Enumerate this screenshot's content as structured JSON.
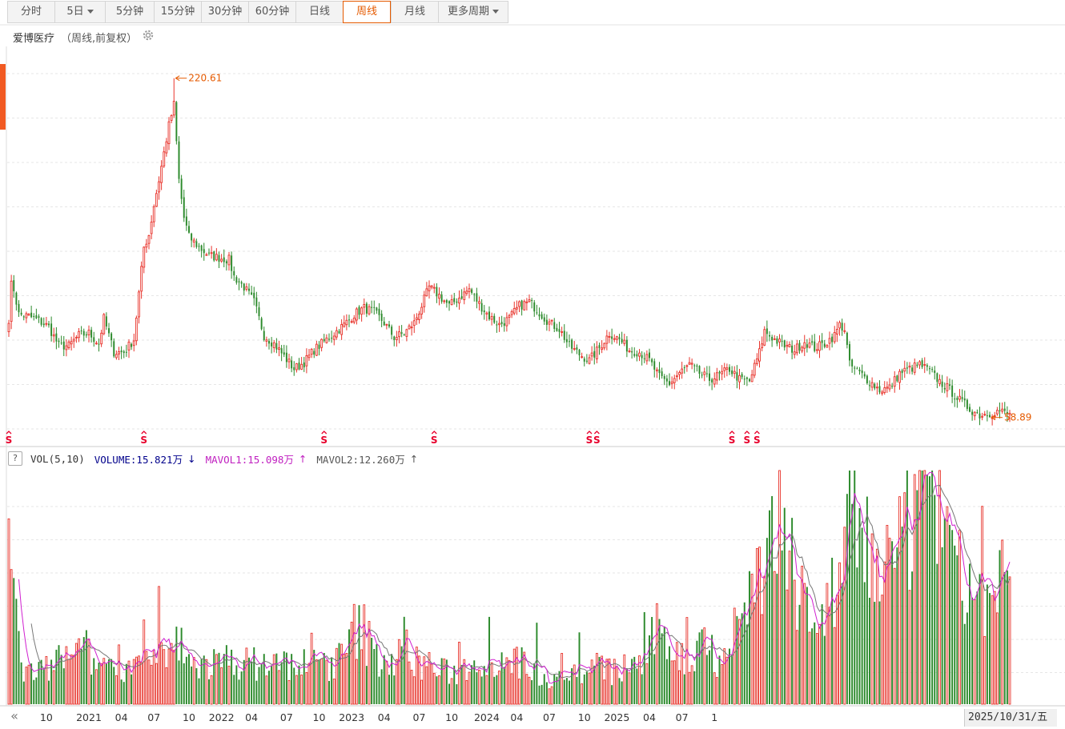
{
  "tabs": [
    {
      "label": "分时",
      "dropdown": false,
      "active": false,
      "w": 58
    },
    {
      "label": "5日",
      "dropdown": true,
      "active": false,
      "w": 62
    },
    {
      "label": "5分钟",
      "dropdown": false,
      "active": false,
      "w": 60
    },
    {
      "label": "15分钟",
      "dropdown": false,
      "active": false,
      "w": 58
    },
    {
      "label": "30分钟",
      "dropdown": false,
      "active": false,
      "w": 58
    },
    {
      "label": "60分钟",
      "dropdown": false,
      "active": false,
      "w": 58
    },
    {
      "label": "日线",
      "dropdown": false,
      "active": false,
      "w": 58
    },
    {
      "label": "周线",
      "dropdown": false,
      "active": true,
      "w": 58
    },
    {
      "label": "月线",
      "dropdown": false,
      "active": false,
      "w": 58
    },
    {
      "label": "更多周期",
      "dropdown": true,
      "active": false,
      "w": 86
    }
  ],
  "stock": {
    "name": "爱博医疗",
    "period": "（周线,前复权）",
    "settings_icon": "gear-icon"
  },
  "volume_legend": {
    "help_label": "?",
    "indicator": "VOL(5,10)",
    "volume_text": "VOLUME:15.821万",
    "volume_arrow": "↓",
    "mavol1_text": "MAVOL1:15.098万",
    "mavol1_arrow": "↑",
    "mavol2_text": "MAVOL2:12.260万",
    "mavol2_arrow": "↑"
  },
  "date_display": "2025/10/31/五",
  "nav_icon": "double-left-arrow-icon",
  "colors": {
    "up": "#e8342c",
    "down": "#2b8a2b",
    "mavol1": "#d020d0",
    "mavol2": "#777777",
    "accent": "#e55a00",
    "marker": "#e8002c"
  },
  "chart_data": [
    {
      "type": "candlestick",
      "title": "爱博医疗",
      "period": "weekly",
      "ylim": [
        50,
        235
      ],
      "max_label": "220.61",
      "min_label": "58.89",
      "series": [
        {
          "name": "weekly close",
          "anchors": [
            [
              0,
              106
            ],
            [
              1,
              122
            ],
            [
              2,
              120
            ],
            [
              4,
              108
            ],
            [
              8,
              107
            ],
            [
              12,
              105
            ],
            [
              16,
              102
            ],
            [
              20,
              93
            ],
            [
              24,
              93
            ],
            [
              28,
              98
            ],
            [
              32,
              99
            ],
            [
              36,
              94
            ],
            [
              38,
              106
            ],
            [
              42,
              90
            ],
            [
              46,
              90
            ],
            [
              50,
              96
            ],
            [
              54,
              140
            ],
            [
              56,
              146
            ],
            [
              58,
              160
            ],
            [
              60,
              172
            ],
            [
              62,
              185
            ],
            [
              64,
              198
            ],
            [
              66,
              208
            ],
            [
              68,
              172
            ],
            [
              70,
              154
            ],
            [
              72,
              145
            ],
            [
              76,
              140
            ],
            [
              80,
              136
            ],
            [
              84,
              135
            ],
            [
              88,
              134
            ],
            [
              90,
              126
            ],
            [
              94,
              121
            ],
            [
              98,
              114
            ],
            [
              102,
              98
            ],
            [
              106,
              94
            ],
            [
              110,
              88
            ],
            [
              114,
              82
            ],
            [
              118,
              85
            ],
            [
              122,
              91
            ],
            [
              126,
              95
            ],
            [
              130,
              99
            ],
            [
              134,
              103
            ],
            [
              138,
              108
            ],
            [
              142,
              111
            ],
            [
              146,
              109
            ],
            [
              150,
              104
            ],
            [
              154,
              97
            ],
            [
              158,
              99
            ],
            [
              162,
              104
            ],
            [
              166,
              115
            ],
            [
              168,
              121
            ],
            [
              172,
              117
            ],
            [
              176,
              112
            ],
            [
              180,
              116
            ],
            [
              184,
              120
            ],
            [
              188,
              113
            ],
            [
              192,
              107
            ],
            [
              196,
              103
            ],
            [
              200,
              106
            ],
            [
              204,
              112
            ],
            [
              208,
              114
            ],
            [
              212,
              109
            ],
            [
              216,
              104
            ],
            [
              220,
              101
            ],
            [
              224,
              93
            ],
            [
              228,
              89
            ],
            [
              232,
              86
            ],
            [
              236,
              92
            ],
            [
              240,
              99
            ],
            [
              244,
              96
            ],
            [
              248,
              91
            ],
            [
              252,
              90
            ],
            [
              256,
              86
            ],
            [
              260,
              78
            ],
            [
              264,
              75
            ],
            [
              268,
              80
            ],
            [
              272,
              84
            ],
            [
              276,
              80
            ],
            [
              280,
              77
            ],
            [
              284,
              79
            ],
            [
              288,
              82
            ],
            [
              292,
              77
            ],
            [
              296,
              76
            ],
            [
              300,
              90
            ],
            [
              302,
              100
            ],
            [
              306,
              96
            ],
            [
              310,
              93
            ],
            [
              314,
              91
            ],
            [
              318,
              95
            ],
            [
              322,
              92
            ],
            [
              326,
              94
            ],
            [
              330,
              98
            ],
            [
              332,
              103
            ],
            [
              334,
              101
            ],
            [
              336,
              84
            ],
            [
              340,
              80
            ],
            [
              344,
              76
            ],
            [
              348,
              72
            ],
            [
              352,
              73
            ],
            [
              356,
              80
            ],
            [
              360,
              82
            ],
            [
              364,
              84
            ],
            [
              368,
              81
            ],
            [
              372,
              76
            ],
            [
              376,
              72
            ],
            [
              380,
              67
            ],
            [
              384,
              63
            ],
            [
              388,
              60
            ],
            [
              392,
              61
            ],
            [
              396,
              62
            ],
            [
              400,
              60
            ]
          ]
        }
      ],
      "volume": {
        "unit": "万",
        "anchors": [
          [
            0,
            28
          ],
          [
            2,
            12
          ],
          [
            6,
            4
          ],
          [
            10,
            4
          ],
          [
            14,
            4
          ],
          [
            18,
            5
          ],
          [
            22,
            6
          ],
          [
            26,
            5
          ],
          [
            30,
            7
          ],
          [
            34,
            5
          ],
          [
            38,
            5
          ],
          [
            42,
            6
          ],
          [
            46,
            5
          ],
          [
            50,
            5
          ],
          [
            54,
            5
          ],
          [
            58,
            5
          ],
          [
            60,
            6
          ],
          [
            62,
            6
          ],
          [
            64,
            5
          ],
          [
            66,
            7
          ],
          [
            68,
            8
          ],
          [
            70,
            6
          ],
          [
            72,
            5
          ],
          [
            74,
            5
          ],
          [
            78,
            5
          ],
          [
            82,
            5
          ],
          [
            86,
            5
          ],
          [
            90,
            6
          ],
          [
            94,
            5
          ],
          [
            98,
            5
          ],
          [
            102,
            5
          ],
          [
            106,
            5
          ],
          [
            110,
            5
          ],
          [
            114,
            5
          ],
          [
            118,
            5
          ],
          [
            122,
            5
          ],
          [
            126,
            5
          ],
          [
            130,
            5
          ],
          [
            134,
            6
          ],
          [
            138,
            9
          ],
          [
            142,
            9
          ],
          [
            146,
            6
          ],
          [
            150,
            6
          ],
          [
            154,
            5
          ],
          [
            156,
            6
          ],
          [
            158,
            8
          ],
          [
            160,
            6
          ],
          [
            164,
            5
          ],
          [
            168,
            5
          ],
          [
            172,
            4
          ],
          [
            176,
            4
          ],
          [
            180,
            4
          ],
          [
            184,
            5
          ],
          [
            188,
            6
          ],
          [
            192,
            5
          ],
          [
            196,
            6
          ],
          [
            200,
            6
          ],
          [
            204,
            5
          ],
          [
            208,
            5
          ],
          [
            212,
            4
          ],
          [
            216,
            3
          ],
          [
            220,
            5
          ],
          [
            224,
            4
          ],
          [
            228,
            4
          ],
          [
            232,
            4
          ],
          [
            236,
            5
          ],
          [
            240,
            4
          ],
          [
            244,
            4
          ],
          [
            248,
            5
          ],
          [
            252,
            5
          ],
          [
            256,
            6
          ],
          [
            258,
            9
          ],
          [
            262,
            9
          ],
          [
            266,
            7
          ],
          [
            270,
            5
          ],
          [
            274,
            6
          ],
          [
            278,
            10
          ],
          [
            282,
            6
          ],
          [
            286,
            6
          ],
          [
            290,
            9
          ],
          [
            294,
            12
          ],
          [
            298,
            14
          ],
          [
            300,
            17
          ],
          [
            304,
            20
          ],
          [
            308,
            21
          ],
          [
            312,
            16
          ],
          [
            316,
            16
          ],
          [
            320,
            13
          ],
          [
            324,
            9
          ],
          [
            328,
            12
          ],
          [
            332,
            14
          ],
          [
            334,
            20
          ],
          [
            338,
            24
          ],
          [
            342,
            20
          ],
          [
            346,
            17
          ],
          [
            350,
            19
          ],
          [
            354,
            16
          ],
          [
            358,
            20
          ],
          [
            362,
            27
          ],
          [
            366,
            30
          ],
          [
            370,
            27
          ],
          [
            374,
            20
          ],
          [
            378,
            14
          ],
          [
            382,
            16
          ],
          [
            386,
            14
          ],
          [
            390,
            13
          ],
          [
            394,
            12
          ],
          [
            398,
            15.8
          ],
          [
            400,
            15.8
          ]
        ],
        "mavol1": 15.098,
        "mavol2": 12.26
      },
      "s_markers_week": [
        0,
        54,
        126,
        170,
        232,
        235,
        289,
        295,
        299
      ],
      "x_ticks": [
        {
          "label": "10",
          "week": 15
        },
        {
          "label": "2021",
          "week": 32
        },
        {
          "label": "04",
          "week": 45
        },
        {
          "label": "07",
          "week": 58
        },
        {
          "label": "10",
          "week": 72
        },
        {
          "label": "2022",
          "week": 85
        },
        {
          "label": "04",
          "week": 97
        },
        {
          "label": "07",
          "week": 111
        },
        {
          "label": "10",
          "week": 124
        },
        {
          "label": "2023",
          "week": 137
        },
        {
          "label": "04",
          "week": 150
        },
        {
          "label": "07",
          "week": 164
        },
        {
          "label": "10",
          "week": 177
        },
        {
          "label": "2024",
          "week": 191
        },
        {
          "label": "04",
          "week": 203
        },
        {
          "label": "07",
          "week": 216
        },
        {
          "label": "10",
          "week": 230
        },
        {
          "label": "2025",
          "week": 243
        },
        {
          "label": "04",
          "week": 256
        },
        {
          "label": "07",
          "week": 269
        },
        {
          "label": "1",
          "week": 282
        }
      ]
    }
  ]
}
